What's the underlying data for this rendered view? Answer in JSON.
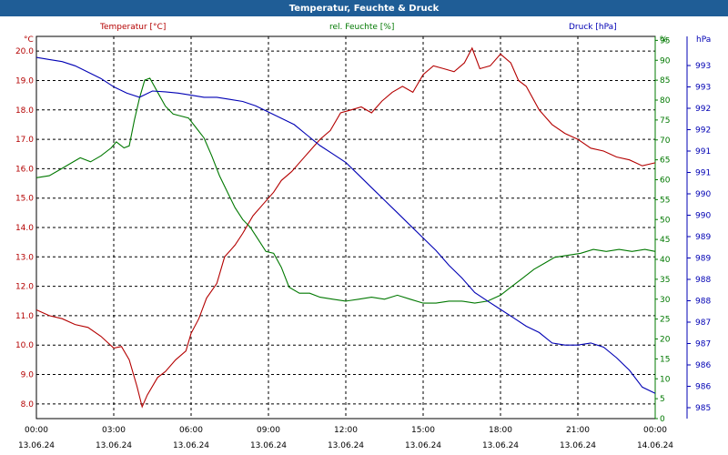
{
  "window": {
    "title": "Temperatur, Feuchte & Druck"
  },
  "colors": {
    "temperature": "#b40000",
    "humidity": "#007800",
    "pressure": "#0000b4",
    "title_bg": "#1f5d96",
    "grid": "#000000"
  },
  "chart_data": {
    "type": "line",
    "title": "Temperatur, Feuchte & Druck",
    "grid": true,
    "legend_position": "top",
    "x_ticks": [
      {
        "time": "00:00",
        "date": "13.06.24",
        "hours": 0
      },
      {
        "time": "03:00",
        "date": "13.06.24",
        "hours": 3
      },
      {
        "time": "06:00",
        "date": "13.06.24",
        "hours": 6
      },
      {
        "time": "09:00",
        "date": "13.06.24",
        "hours": 9
      },
      {
        "time": "12:00",
        "date": "13.06.24",
        "hours": 12
      },
      {
        "time": "15:00",
        "date": "13.06.24",
        "hours": 15
      },
      {
        "time": "18:00",
        "date": "13.06.24",
        "hours": 18
      },
      {
        "time": "21:00",
        "date": "13.06.24",
        "hours": 21
      },
      {
        "time": "00:00",
        "date": "14.06.24",
        "hours": 24
      }
    ],
    "xlim": [
      0,
      24
    ],
    "axes": {
      "temperature": {
        "unit": "°C",
        "ylim": [
          7.5,
          20.5
        ],
        "ticks": [
          8.0,
          9.0,
          10.0,
          11.0,
          12.0,
          13.0,
          14.0,
          15.0,
          16.0,
          17.0,
          18.0,
          19.0,
          20.0
        ]
      },
      "humidity": {
        "unit": "%",
        "ylim": [
          0,
          96
        ],
        "ticks": [
          0,
          5,
          10,
          15,
          20,
          25,
          30,
          35,
          40,
          45,
          50,
          55,
          60,
          65,
          70,
          75,
          80,
          85,
          90,
          95
        ]
      },
      "pressure": {
        "unit": "hPa",
        "ylim": [
          984.8,
          993.9
        ],
        "tick_labels": [
          "985",
          "986",
          "986",
          "987",
          "987",
          "988",
          "988",
          "989",
          "989",
          "990",
          "990",
          "991",
          "991",
          "992",
          "992",
          "993",
          "993"
        ]
      }
    },
    "series": [
      {
        "name": "Temperatur [°C]",
        "axis": "temperature",
        "points": [
          [
            0.0,
            11.2
          ],
          [
            0.5,
            11.0
          ],
          [
            1.0,
            10.9
          ],
          [
            1.5,
            10.7
          ],
          [
            2.0,
            10.6
          ],
          [
            2.5,
            10.3
          ],
          [
            3.0,
            9.9
          ],
          [
            3.3,
            9.95
          ],
          [
            3.6,
            9.5
          ],
          [
            3.9,
            8.6
          ],
          [
            4.1,
            7.9
          ],
          [
            4.3,
            8.3
          ],
          [
            4.7,
            8.9
          ],
          [
            5.0,
            9.1
          ],
          [
            5.4,
            9.5
          ],
          [
            5.8,
            9.8
          ],
          [
            6.0,
            10.4
          ],
          [
            6.3,
            10.9
          ],
          [
            6.6,
            11.6
          ],
          [
            7.0,
            12.1
          ],
          [
            7.3,
            13.0
          ],
          [
            7.7,
            13.4
          ],
          [
            8.0,
            13.8
          ],
          [
            8.4,
            14.4
          ],
          [
            8.8,
            14.8
          ],
          [
            9.2,
            15.2
          ],
          [
            9.5,
            15.6
          ],
          [
            9.9,
            15.9
          ],
          [
            10.3,
            16.3
          ],
          [
            10.7,
            16.7
          ],
          [
            11.0,
            17.0
          ],
          [
            11.4,
            17.3
          ],
          [
            11.8,
            17.9
          ],
          [
            12.2,
            18.0
          ],
          [
            12.6,
            18.1
          ],
          [
            13.0,
            17.9
          ],
          [
            13.4,
            18.3
          ],
          [
            13.8,
            18.6
          ],
          [
            14.2,
            18.8
          ],
          [
            14.6,
            18.6
          ],
          [
            15.0,
            19.2
          ],
          [
            15.4,
            19.5
          ],
          [
            15.8,
            19.4
          ],
          [
            16.2,
            19.3
          ],
          [
            16.6,
            19.6
          ],
          [
            16.9,
            20.1
          ],
          [
            17.2,
            19.4
          ],
          [
            17.6,
            19.5
          ],
          [
            18.0,
            19.9
          ],
          [
            18.4,
            19.6
          ],
          [
            18.7,
            19.0
          ],
          [
            19.0,
            18.8
          ],
          [
            19.5,
            18.0
          ],
          [
            20.0,
            17.5
          ],
          [
            20.5,
            17.2
          ],
          [
            21.0,
            17.0
          ],
          [
            21.5,
            16.7
          ],
          [
            22.0,
            16.6
          ],
          [
            22.5,
            16.4
          ],
          [
            23.0,
            16.3
          ],
          [
            23.5,
            16.1
          ],
          [
            24.0,
            16.2
          ]
        ]
      },
      {
        "name": "rel. Feuchte [%]",
        "axis": "humidity",
        "points": [
          [
            0.0,
            60.5
          ],
          [
            0.5,
            61.0
          ],
          [
            0.9,
            62.5
          ],
          [
            1.3,
            64.0
          ],
          [
            1.7,
            65.5
          ],
          [
            2.1,
            64.5
          ],
          [
            2.5,
            66.0
          ],
          [
            2.9,
            68.0
          ],
          [
            3.1,
            69.5
          ],
          [
            3.4,
            68.0
          ],
          [
            3.6,
            68.5
          ],
          [
            3.8,
            75.0
          ],
          [
            4.0,
            80.5
          ],
          [
            4.2,
            85.0
          ],
          [
            4.4,
            85.5
          ],
          [
            4.7,
            82.0
          ],
          [
            5.0,
            78.5
          ],
          [
            5.3,
            76.5
          ],
          [
            5.6,
            76.0
          ],
          [
            5.9,
            75.5
          ],
          [
            6.2,
            73.0
          ],
          [
            6.5,
            70.5
          ],
          [
            6.8,
            66.0
          ],
          [
            7.1,
            61.0
          ],
          [
            7.4,
            57.0
          ],
          [
            7.7,
            53.0
          ],
          [
            8.0,
            50.0
          ],
          [
            8.3,
            48.0
          ],
          [
            8.6,
            45.0
          ],
          [
            8.9,
            42.0
          ],
          [
            9.2,
            41.5
          ],
          [
            9.5,
            38.0
          ],
          [
            9.8,
            33.0
          ],
          [
            10.2,
            31.5
          ],
          [
            10.6,
            31.5
          ],
          [
            11.0,
            30.5
          ],
          [
            11.5,
            30.0
          ],
          [
            12.0,
            29.5
          ],
          [
            12.5,
            30.0
          ],
          [
            13.0,
            30.5
          ],
          [
            13.5,
            30.0
          ],
          [
            14.0,
            31.0
          ],
          [
            14.5,
            30.0
          ],
          [
            15.0,
            29.0
          ],
          [
            15.5,
            29.0
          ],
          [
            16.0,
            29.5
          ],
          [
            16.5,
            29.5
          ],
          [
            17.0,
            29.0
          ],
          [
            17.5,
            29.5
          ],
          [
            18.0,
            31.0
          ],
          [
            18.4,
            33.0
          ],
          [
            18.8,
            35.0
          ],
          [
            19.3,
            37.5
          ],
          [
            19.7,
            39.0
          ],
          [
            20.1,
            40.5
          ],
          [
            20.6,
            41.0
          ],
          [
            21.1,
            41.5
          ],
          [
            21.6,
            42.5
          ],
          [
            22.1,
            42.0
          ],
          [
            22.6,
            42.5
          ],
          [
            23.1,
            42.0
          ],
          [
            23.6,
            42.5
          ],
          [
            24.0,
            42.0
          ]
        ]
      },
      {
        "name": "Druck [hPa]",
        "axis": "pressure",
        "points": [
          [
            0.0,
            993.4
          ],
          [
            0.5,
            993.35
          ],
          [
            1.0,
            993.3
          ],
          [
            1.5,
            993.2
          ],
          [
            2.0,
            993.05
          ],
          [
            2.5,
            992.9
          ],
          [
            3.0,
            992.7
          ],
          [
            3.5,
            992.55
          ],
          [
            4.0,
            992.45
          ],
          [
            4.5,
            992.6
          ],
          [
            5.0,
            992.58
          ],
          [
            5.5,
            992.55
          ],
          [
            6.0,
            992.5
          ],
          [
            6.5,
            992.45
          ],
          [
            7.0,
            992.45
          ],
          [
            7.5,
            992.4
          ],
          [
            8.0,
            992.35
          ],
          [
            8.5,
            992.25
          ],
          [
            9.0,
            992.1
          ],
          [
            9.5,
            991.95
          ],
          [
            10.0,
            991.8
          ],
          [
            10.5,
            991.55
          ],
          [
            11.0,
            991.3
          ],
          [
            11.5,
            991.1
          ],
          [
            12.0,
            990.9
          ],
          [
            12.5,
            990.6
          ],
          [
            13.0,
            990.3
          ],
          [
            13.5,
            990.0
          ],
          [
            14.0,
            989.7
          ],
          [
            14.5,
            989.4
          ],
          [
            15.0,
            989.1
          ],
          [
            15.5,
            988.8
          ],
          [
            16.0,
            988.45
          ],
          [
            16.5,
            988.15
          ],
          [
            17.0,
            987.8
          ],
          [
            17.5,
            987.6
          ],
          [
            18.0,
            987.4
          ],
          [
            18.5,
            987.2
          ],
          [
            19.0,
            987.0
          ],
          [
            19.5,
            986.85
          ],
          [
            20.0,
            986.6
          ],
          [
            20.5,
            986.55
          ],
          [
            21.0,
            986.55
          ],
          [
            21.5,
            986.6
          ],
          [
            22.0,
            986.5
          ],
          [
            22.5,
            986.25
          ],
          [
            23.0,
            985.95
          ],
          [
            23.5,
            985.55
          ],
          [
            24.0,
            985.4
          ]
        ]
      }
    ]
  }
}
